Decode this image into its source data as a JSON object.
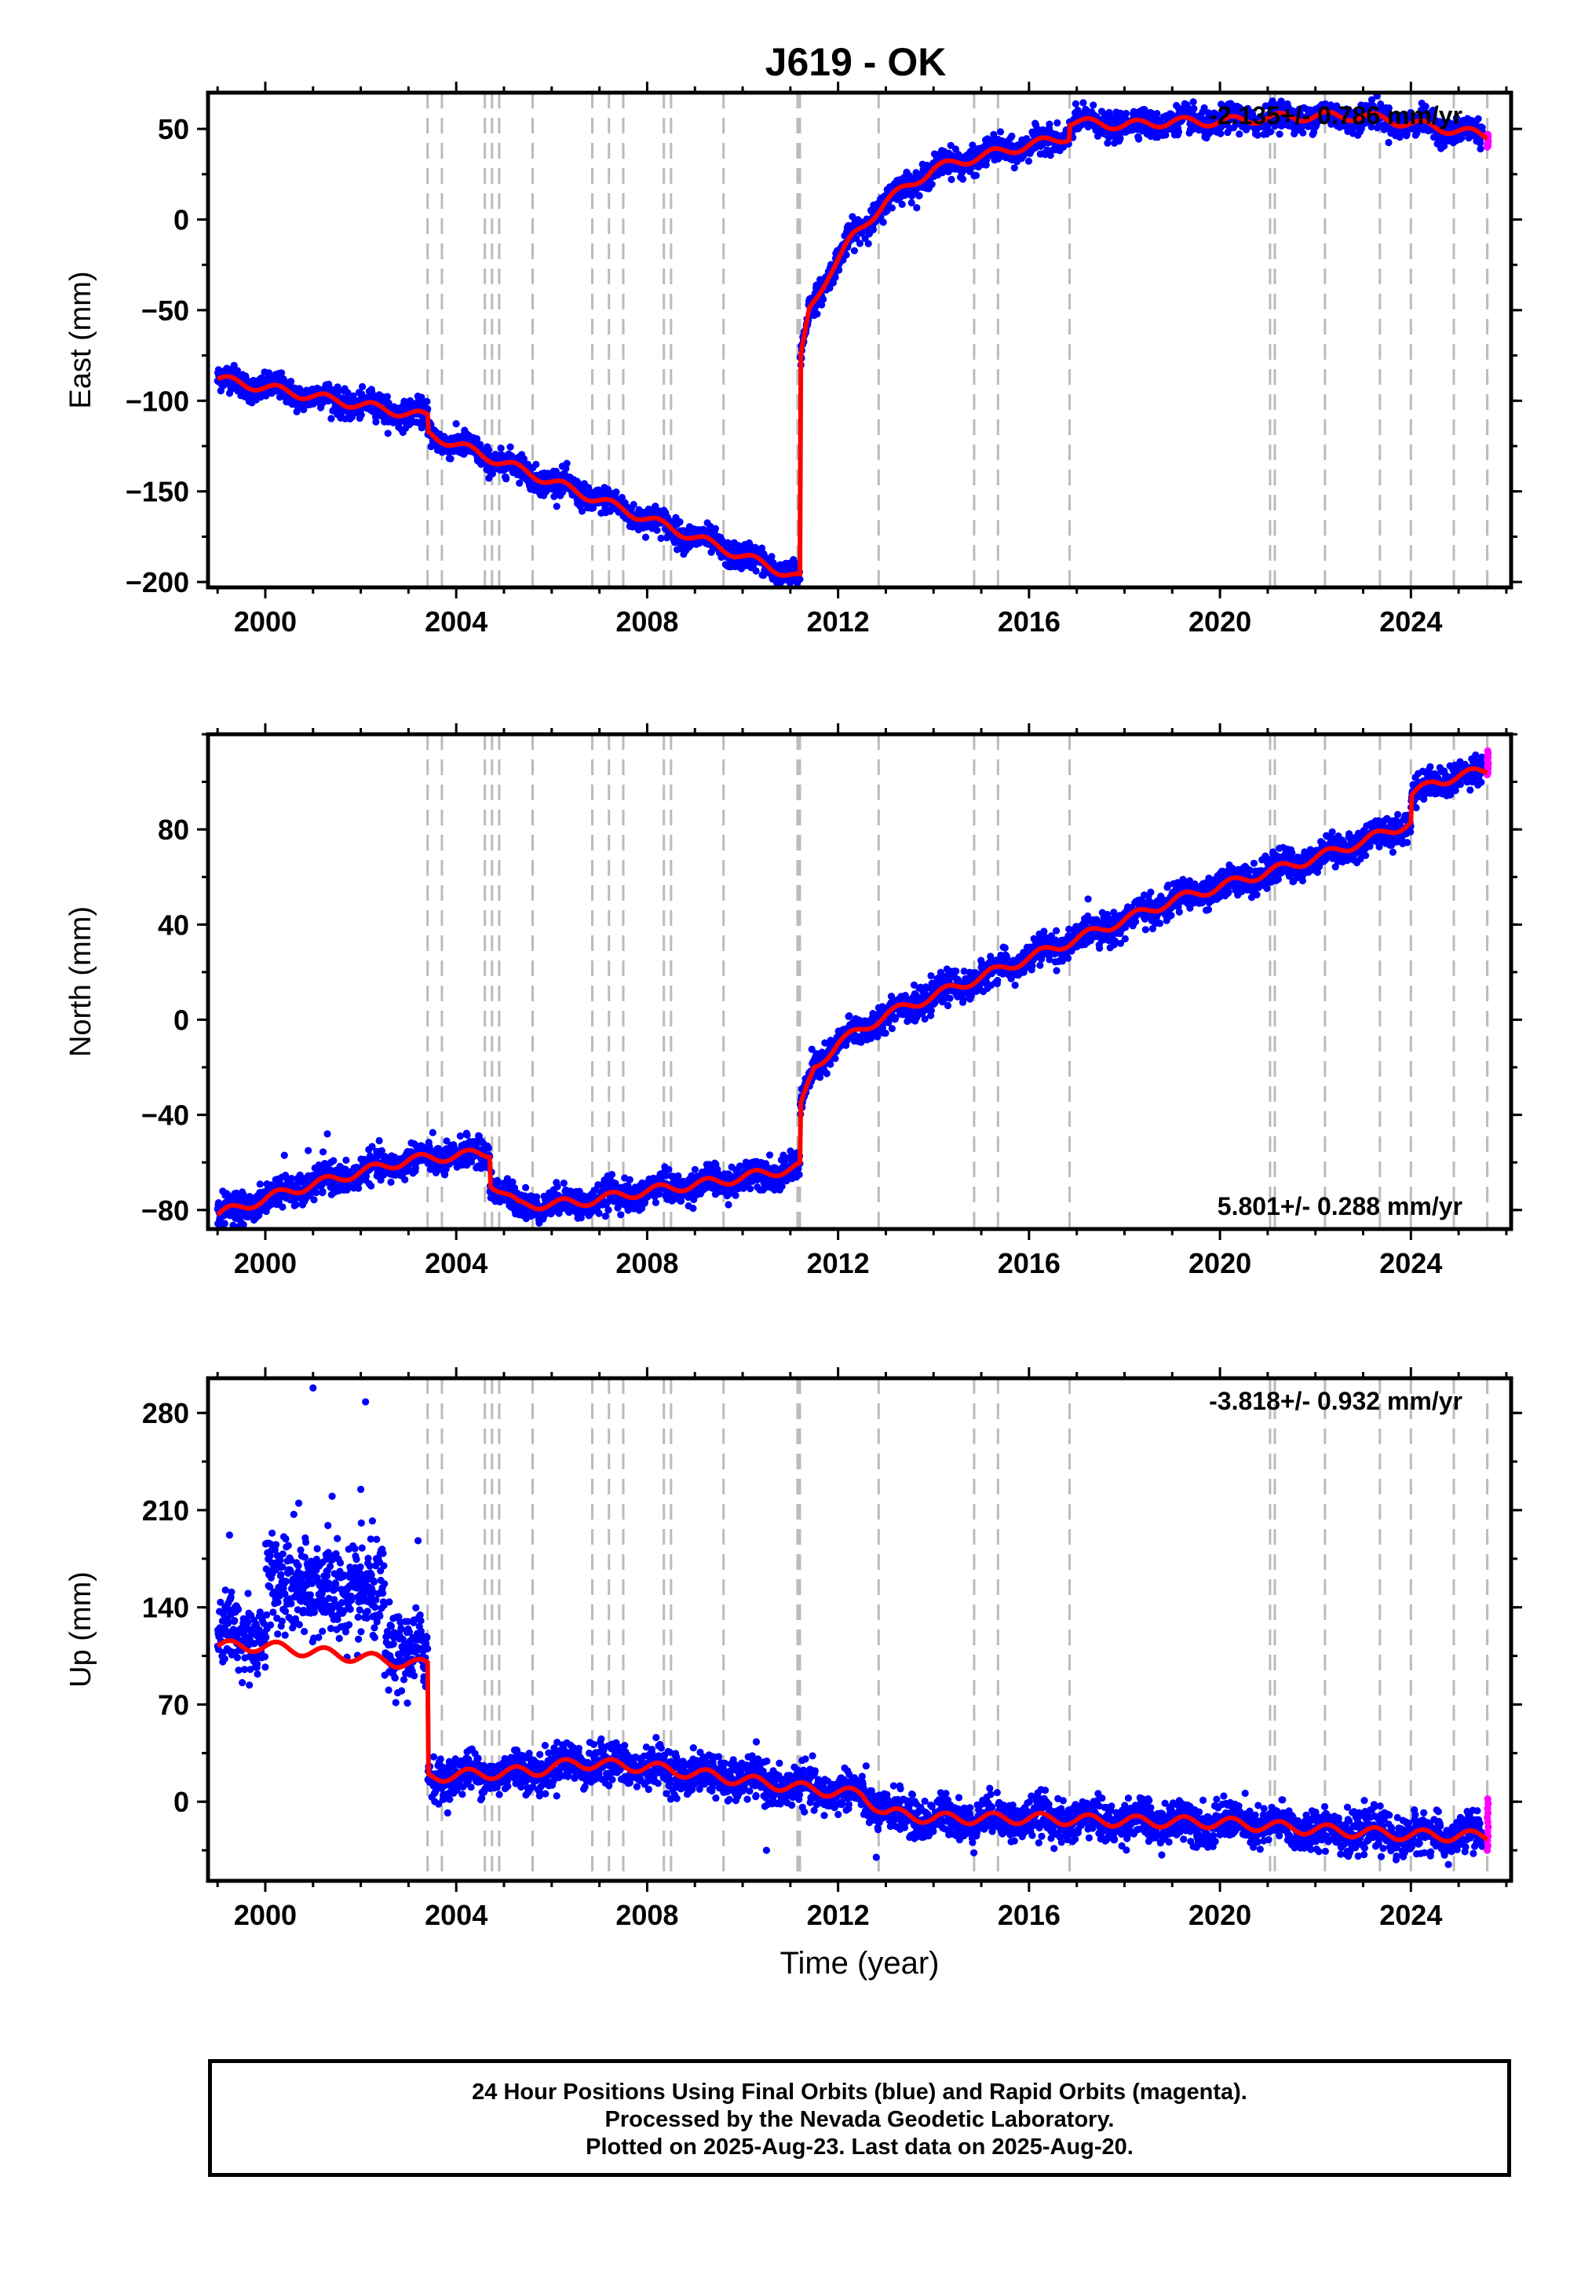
{
  "title": "J619 - OK",
  "colors": {
    "final": "#0000ff",
    "rapid": "#ff00ff",
    "model": "#ff0000",
    "event_lines": "#bbbbbb"
  },
  "chart_data": [
    {
      "type": "scatter",
      "component": "East",
      "ylabel": "East (mm)",
      "xlabel": "",
      "xlim": [
        1998.8,
        2026.1
      ],
      "ylim": [
        -203,
        70
      ],
      "x_ticks": [
        2000,
        2004,
        2008,
        2012,
        2016,
        2020,
        2024
      ],
      "y_ticks": [
        -200,
        -150,
        -100,
        -50,
        0,
        50
      ],
      "rate_label": "-2.135+/- 0.786 mm/yr",
      "rate_label_position": "top-right",
      "event_lines": [
        2003.4,
        2003.7,
        2004.6,
        2004.75,
        2004.9,
        2005.6,
        2006.85,
        2007.2,
        2007.5,
        2008.35,
        2008.5,
        2009.6,
        2011.15,
        2011.2,
        2012.85,
        2014.85,
        2015.35,
        2016.85,
        2021.05,
        2021.15,
        2022.2,
        2023.35,
        2024.0,
        2024.9,
        2025.6
      ],
      "trend_knots": [
        [
          1999.0,
          -88
        ],
        [
          2003.4,
          -109
        ],
        [
          2003.4,
          -118
        ],
        [
          2011.2,
          -198
        ],
        [
          2011.2,
          -80
        ],
        [
          2011.4,
          -50
        ],
        [
          2011.8,
          -30
        ],
        [
          2012.3,
          -10
        ],
        [
          2013.0,
          10
        ],
        [
          2014.0,
          28
        ],
        [
          2015.0,
          35
        ],
        [
          2016.0,
          41
        ],
        [
          2016.85,
          46
        ],
        [
          2016.85,
          54
        ],
        [
          2018.0,
          52
        ],
        [
          2019.0,
          54
        ],
        [
          2020.0,
          54
        ],
        [
          2021.0,
          56
        ],
        [
          2022.0,
          57
        ],
        [
          2023.0,
          57
        ],
        [
          2024.0,
          53
        ],
        [
          2025.0,
          49
        ],
        [
          2025.6,
          46
        ]
      ],
      "seasonal_amplitude": 2.5,
      "scatter_sigma": 3.5,
      "outliers": [],
      "rapid_start": 2025.5,
      "rapid_range": [
        40,
        47
      ]
    },
    {
      "type": "scatter",
      "component": "North",
      "ylabel": "North (mm)",
      "xlabel": "",
      "xlim": [
        1998.8,
        2026.1
      ],
      "ylim": [
        -88,
        120
      ],
      "x_ticks": [
        2000,
        2004,
        2008,
        2012,
        2016,
        2020,
        2024
      ],
      "y_ticks": [
        -80,
        -40,
        0,
        40,
        80
      ],
      "rate_label": "5.801+/- 0.288 mm/yr",
      "rate_label_position": "bottom-right",
      "event_lines": [
        2003.4,
        2003.7,
        2004.6,
        2004.75,
        2004.9,
        2005.6,
        2006.85,
        2007.2,
        2007.5,
        2008.35,
        2008.5,
        2009.6,
        2011.15,
        2011.2,
        2012.85,
        2014.85,
        2015.35,
        2016.85,
        2021.05,
        2021.15,
        2022.2,
        2023.35,
        2024.0,
        2024.9,
        2025.6
      ],
      "trend_knots": [
        [
          1999.0,
          -82
        ],
        [
          2000.5,
          -72
        ],
        [
          2002.0,
          -64
        ],
        [
          2003.0,
          -59
        ],
        [
          2004.7,
          -56
        ],
        [
          2004.7,
          -68
        ],
        [
          2005.3,
          -78
        ],
        [
          2006.5,
          -77
        ],
        [
          2008.0,
          -72
        ],
        [
          2009.5,
          -68
        ],
        [
          2011.2,
          -62
        ],
        [
          2011.2,
          -38
        ],
        [
          2011.5,
          -20
        ],
        [
          2012.0,
          -10
        ],
        [
          2013.0,
          2
        ],
        [
          2014.0,
          10
        ],
        [
          2015.0,
          18
        ],
        [
          2016.0,
          26
        ],
        [
          2017.0,
          34
        ],
        [
          2018.0,
          42
        ],
        [
          2019.0,
          50
        ],
        [
          2020.0,
          56
        ],
        [
          2021.0,
          62
        ],
        [
          2022.0,
          68
        ],
        [
          2023.0,
          75
        ],
        [
          2024.0,
          83
        ],
        [
          2024.0,
          94
        ],
        [
          2024.5,
          100
        ],
        [
          2025.6,
          105
        ]
      ],
      "seasonal_amplitude": 2.0,
      "scatter_sigma": 3.0,
      "outliers": [
        [
          2000.4,
          -57
        ],
        [
          2001.3,
          -48
        ],
        [
          2000.9,
          -55
        ],
        [
          2003.8,
          -51
        ]
      ],
      "rapid_start": 2025.5,
      "rapid_range": [
        103,
        113
      ]
    },
    {
      "type": "scatter",
      "component": "Up",
      "ylabel": "Up (mm)",
      "xlabel": "Time (year)",
      "xlim": [
        1998.8,
        2026.1
      ],
      "ylim": [
        -57,
        305
      ],
      "x_ticks": [
        2000,
        2004,
        2008,
        2012,
        2016,
        2020,
        2024
      ],
      "y_ticks": [
        0,
        70,
        140,
        210,
        280
      ],
      "rate_label": "-3.818+/- 0.932 mm/yr",
      "rate_label_position": "top-right",
      "event_lines": [
        2003.4,
        2003.7,
        2004.6,
        2004.75,
        2004.9,
        2005.6,
        2006.85,
        2007.2,
        2007.5,
        2008.35,
        2008.5,
        2009.6,
        2011.15,
        2011.2,
        2012.85,
        2014.85,
        2015.35,
        2016.85,
        2021.05,
        2021.15,
        2022.2,
        2023.35,
        2024.0,
        2024.9,
        2025.6
      ],
      "trend_knots": [
        [
          1999.0,
          112
        ],
        [
          2000.0,
          112
        ],
        [
          2001.0,
          108
        ],
        [
          2002.0,
          104
        ],
        [
          2003.4,
          98
        ],
        [
          2003.4,
          18
        ],
        [
          2005.6,
          22
        ],
        [
          2006.5,
          28
        ],
        [
          2008.0,
          25
        ],
        [
          2009.5,
          18
        ],
        [
          2011.2,
          10
        ],
        [
          2012.5,
          5
        ],
        [
          2013.0,
          -8
        ],
        [
          2014.0,
          -12
        ],
        [
          2016.0,
          -12
        ],
        [
          2018.0,
          -14
        ],
        [
          2020.0,
          -15
        ],
        [
          2022.0,
          -20
        ],
        [
          2024.0,
          -24
        ],
        [
          2025.6,
          -25
        ]
      ],
      "seasonal_amplitude": 4.0,
      "scatter_sigma": 7.0,
      "outliers": [
        [
          2001.0,
          298
        ],
        [
          2002.1,
          288
        ],
        [
          1999.25,
          192
        ],
        [
          2002.0,
          225
        ],
        [
          2003.2,
          188
        ],
        [
          2000.7,
          215
        ],
        [
          2001.4,
          220
        ],
        [
          2010.5,
          -35
        ],
        [
          2012.8,
          -40
        ]
      ],
      "rapid_start": 2025.5,
      "rapid_range": [
        -35,
        2
      ]
    }
  ],
  "footer": {
    "line1": "24 Hour Positions Using Final Orbits (blue) and Rapid Orbits (magenta).",
    "line2": "Processed by the Nevada Geodetic Laboratory.",
    "line3": "Plotted on 2025-Aug-23. Last data on 2025-Aug-20."
  }
}
